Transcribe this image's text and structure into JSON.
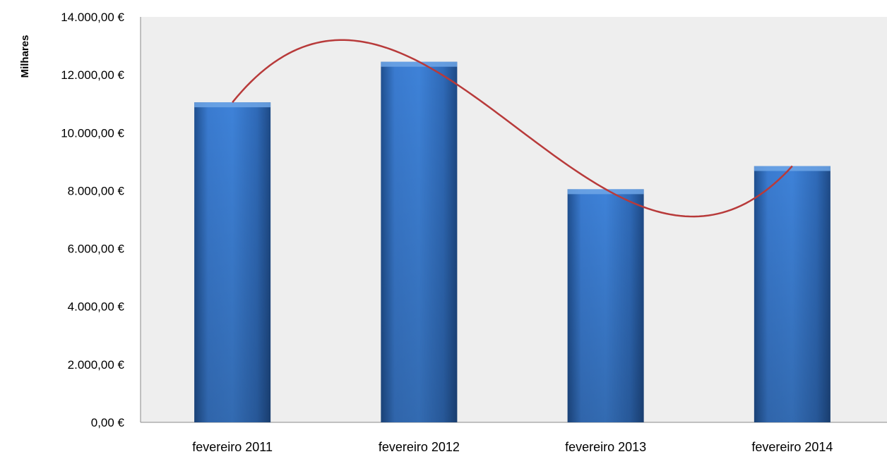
{
  "chart_data": {
    "type": "bar",
    "categories": [
      "fevereiro 2011",
      "fevereiro 2012",
      "fevereiro 2013",
      "fevereiro 2014"
    ],
    "values": [
      11050,
      12450,
      8050,
      8850
    ],
    "ylabel": "Milhares",
    "ylim": [
      0,
      14000
    ],
    "y_ticks": [
      0,
      2000,
      4000,
      6000,
      8000,
      10000,
      12000,
      14000
    ],
    "y_tick_labels": [
      "0,00 €",
      "2.000,00 €",
      "4.000,00 €",
      "6.000,00 €",
      "8.000,00 €",
      "10.000,00 €",
      "12.000,00 €",
      "14.000,00 €"
    ],
    "trendline": {
      "type": "polynomial",
      "color": "#b83a3a"
    },
    "bar_color": "#2f6db5",
    "plot_background": "#eeeeee",
    "legend": "none",
    "grid": false
  }
}
